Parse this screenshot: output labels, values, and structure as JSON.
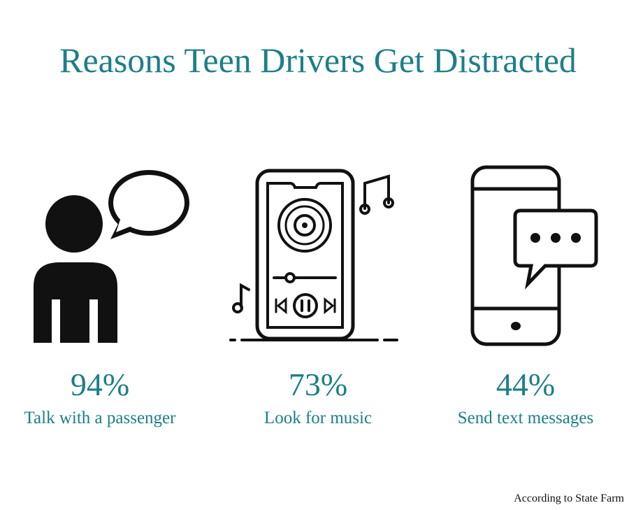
{
  "header": {
    "title": "Reasons Teen Drivers Get Distracted"
  },
  "items": [
    {
      "percent": "94%",
      "label": "Talk with a passenger"
    },
    {
      "percent": "73%",
      "label": "Look for music"
    },
    {
      "percent": "44%",
      "label": "Send text messages"
    }
  ],
  "footer": {
    "source": "According to State Farm"
  }
}
